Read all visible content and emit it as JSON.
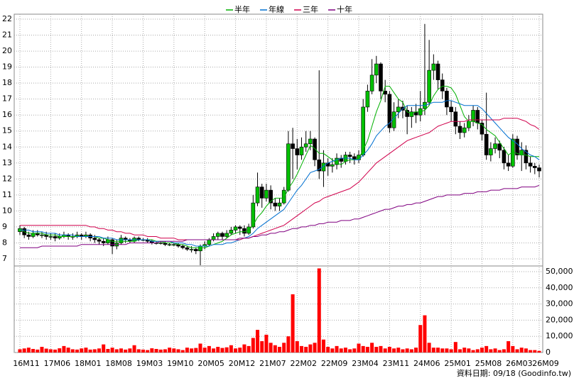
{
  "chart_data": {
    "type": "candlestick",
    "footnote": "資料日期: 09/18 (Goodinfo.tw)",
    "categories": [
      "16M11",
      null,
      null,
      null,
      null,
      null,
      null,
      "17M06",
      null,
      null,
      null,
      null,
      null,
      null,
      "18M01",
      null,
      null,
      null,
      null,
      null,
      null,
      "18M08",
      null,
      null,
      null,
      null,
      null,
      null,
      "19M03",
      null,
      null,
      null,
      null,
      null,
      null,
      "19M10",
      null,
      null,
      null,
      null,
      null,
      null,
      "20M05",
      null,
      null,
      null,
      null,
      null,
      null,
      "20M12",
      null,
      null,
      null,
      null,
      null,
      null,
      "21M07",
      null,
      null,
      null,
      null,
      null,
      null,
      "22M02",
      null,
      null,
      null,
      null,
      null,
      null,
      "22M09",
      null,
      null,
      null,
      null,
      null,
      null,
      "23M04",
      null,
      null,
      null,
      null,
      null,
      null,
      "23M11",
      null,
      null,
      null,
      null,
      null,
      null,
      "24M06",
      null,
      null,
      null,
      null,
      null,
      null,
      "25M01",
      null,
      null,
      null,
      null,
      null,
      null,
      "25M08",
      null,
      null,
      null,
      null,
      null,
      null,
      "26M03",
      null,
      null,
      null,
      null,
      null,
      "26M09"
    ],
    "open": [
      8.7,
      8.9,
      8.5,
      8.4,
      8.6,
      8.5,
      8.5,
      8.4,
      8.4,
      8.3,
      8.4,
      8.5,
      8.4,
      8.4,
      8.5,
      8.4,
      8.5,
      8.3,
      8.2,
      8.1,
      8.0,
      8.2,
      7.8,
      8.0,
      8.3,
      8.2,
      8.1,
      8.3,
      8.2,
      8.2,
      8.1,
      8.0,
      8.0,
      8.0,
      7.9,
      7.9,
      7.9,
      7.8,
      7.7,
      7.6,
      7.6,
      7.5,
      7.8,
      7.9,
      8.2,
      8.4,
      8.6,
      8.4,
      8.6,
      8.8,
      9.0,
      8.9,
      8.6,
      9.0,
      10.5,
      11.5,
      10.8,
      11.3,
      10.5,
      10.3,
      10.5,
      11.3,
      14.2,
      13.9,
      13.5,
      14.0,
      14.2,
      14.5,
      13.2,
      12.5,
      13.0,
      12.8,
      12.9,
      13.3,
      13.1,
      13.5,
      13.4,
      13.2,
      13.5,
      16.5,
      17.5,
      18.5,
      19.2,
      17.5,
      17.3,
      15.2,
      16.2,
      16.5,
      16.3,
      15.9,
      16.2,
      16.0,
      16.4,
      16.8,
      18.8,
      19.2,
      18.2,
      17.5,
      16.5,
      16.2,
      15.3,
      14.9,
      15.2,
      15.6,
      16.3,
      15.5,
      14.8,
      13.5,
      13.9,
      14.2,
      13.8,
      13.0,
      12.8,
      14.5,
      13.5,
      13.8,
      13.0,
      12.8,
      12.7
    ],
    "high": [
      9.1,
      9.0,
      8.7,
      8.8,
      8.8,
      8.7,
      8.7,
      8.6,
      8.6,
      8.6,
      8.7,
      8.6,
      8.6,
      8.7,
      8.6,
      8.7,
      8.6,
      8.5,
      8.3,
      8.3,
      8.4,
      8.3,
      8.2,
      8.5,
      8.4,
      8.3,
      8.4,
      8.4,
      8.3,
      8.3,
      8.2,
      8.1,
      8.1,
      8.1,
      8.0,
      8.0,
      8.0,
      7.9,
      7.8,
      7.8,
      7.7,
      7.9,
      8.1,
      8.3,
      8.6,
      8.7,
      8.7,
      8.8,
      9.0,
      9.1,
      9.1,
      9.1,
      9.2,
      11.0,
      12.4,
      11.7,
      11.7,
      11.6,
      10.8,
      10.8,
      11.5,
      15.0,
      15.2,
      14.5,
      14.6,
      15.0,
      15.0,
      14.6,
      18.8,
      13.8,
      13.3,
      13.3,
      13.6,
      13.5,
      13.7,
      13.7,
      13.6,
      13.8,
      17.0,
      17.9,
      19.5,
      19.7,
      19.3,
      18.2,
      17.5,
      16.8,
      17.0,
      16.9,
      16.6,
      16.5,
      16.7,
      17.5,
      21.7,
      20.7,
      19.8,
      19.4,
      18.6,
      17.7,
      16.9,
      16.5,
      15.6,
      15.5,
      16.0,
      16.6,
      16.5,
      15.7,
      17.4,
      14.3,
      14.6,
      14.4,
      14.0,
      13.5,
      14.8,
      14.7,
      14.3,
      14.1,
      13.4,
      13.0,
      12.9
    ],
    "low": [
      8.5,
      8.3,
      8.2,
      8.3,
      8.4,
      8.3,
      8.2,
      8.2,
      8.1,
      8.2,
      8.3,
      8.2,
      8.2,
      8.3,
      8.2,
      8.3,
      8.1,
      8.0,
      7.9,
      7.8,
      7.9,
      7.3,
      7.6,
      7.9,
      8.0,
      8.0,
      8.0,
      8.1,
      8.1,
      8.0,
      7.9,
      7.9,
      7.9,
      7.8,
      7.8,
      7.8,
      7.7,
      7.6,
      7.5,
      7.4,
      7.3,
      6.6,
      7.6,
      7.8,
      8.1,
      8.2,
      8.2,
      8.3,
      8.5,
      8.6,
      8.5,
      8.4,
      8.5,
      8.9,
      10.3,
      10.2,
      10.6,
      10.1,
      10.0,
      10.0,
      10.4,
      11.2,
      12.0,
      12.6,
      13.2,
      13.7,
      13.8,
      12.8,
      12.0,
      11.5,
      12.2,
      12.4,
      12.6,
      12.7,
      12.9,
      13.0,
      12.9,
      13.0,
      13.4,
      16.2,
      17.3,
      18.0,
      17.0,
      16.8,
      14.9,
      15.0,
      15.8,
      15.8,
      14.8,
      15.2,
      15.5,
      15.6,
      16.0,
      16.6,
      18.2,
      17.6,
      17.0,
      16.0,
      15.6,
      14.8,
      14.5,
      14.6,
      15.0,
      15.3,
      15.1,
      14.4,
      13.2,
      13.1,
      13.6,
      13.3,
      12.6,
      12.5,
      12.7,
      13.2,
      12.5,
      12.6,
      12.4,
      12.3,
      12.1
    ],
    "close": [
      8.9,
      8.5,
      8.4,
      8.6,
      8.5,
      8.5,
      8.4,
      8.4,
      8.3,
      8.4,
      8.5,
      8.4,
      8.4,
      8.5,
      8.4,
      8.5,
      8.3,
      8.2,
      8.1,
      8.0,
      8.2,
      7.8,
      8.0,
      8.3,
      8.2,
      8.1,
      8.3,
      8.2,
      8.2,
      8.1,
      8.0,
      8.0,
      8.0,
      7.9,
      7.9,
      7.9,
      7.8,
      7.7,
      7.6,
      7.6,
      7.5,
      7.8,
      7.9,
      8.2,
      8.4,
      8.6,
      8.4,
      8.6,
      8.8,
      9.0,
      8.9,
      8.6,
      9.0,
      10.5,
      11.5,
      10.8,
      11.3,
      10.5,
      10.3,
      10.5,
      11.3,
      14.2,
      13.9,
      13.5,
      14.0,
      14.2,
      14.5,
      13.2,
      12.5,
      13.0,
      12.8,
      12.9,
      13.3,
      13.1,
      13.5,
      13.4,
      13.2,
      13.5,
      16.5,
      17.5,
      18.5,
      19.2,
      17.5,
      17.3,
      15.2,
      16.2,
      16.5,
      16.3,
      15.9,
      16.2,
      16.0,
      16.4,
      16.8,
      18.8,
      19.2,
      18.2,
      17.5,
      16.5,
      16.2,
      15.3,
      14.9,
      15.2,
      15.6,
      16.3,
      15.5,
      14.8,
      13.5,
      13.9,
      14.2,
      13.8,
      13.0,
      12.8,
      14.5,
      13.5,
      13.8,
      13.0,
      12.8,
      12.7,
      12.5
    ],
    "up_color": "#00c000",
    "down_color": "#000000",
    "series": [
      {
        "name": "半年",
        "color": "#00b000",
        "values": [
          8.9,
          8.7,
          8.6,
          8.6,
          8.6,
          8.6,
          8.5,
          8.5,
          8.5,
          8.4,
          8.4,
          8.4,
          8.4,
          8.4,
          8.4,
          8.4,
          8.4,
          8.4,
          8.3,
          8.3,
          8.2,
          8.1,
          8.1,
          8.1,
          8.1,
          8.1,
          8.1,
          8.2,
          8.2,
          8.2,
          8.2,
          8.1,
          8.1,
          8.0,
          8.0,
          8.0,
          7.9,
          7.9,
          7.8,
          7.7,
          7.7,
          7.7,
          7.7,
          7.8,
          7.9,
          8.0,
          8.1,
          8.3,
          8.5,
          8.6,
          8.7,
          8.7,
          8.8,
          9.1,
          9.6,
          9.9,
          10.3,
          10.6,
          10.8,
          10.8,
          10.8,
          11.4,
          11.8,
          12.3,
          12.9,
          13.5,
          14.1,
          13.9,
          13.6,
          13.6,
          13.4,
          13.2,
          13.0,
          12.9,
          13.1,
          13.2,
          13.2,
          13.3,
          13.8,
          14.4,
          15.3,
          16.2,
          16.9,
          17.8,
          17.8,
          17.4,
          17.0,
          16.8,
          16.2,
          16.1,
          16.2,
          16.2,
          16.3,
          16.6,
          17.2,
          17.6,
          17.8,
          17.8,
          17.7,
          17.3,
          16.6,
          15.9,
          15.6,
          15.6,
          15.5,
          15.4,
          15.1,
          14.9,
          14.7,
          14.3,
          13.9,
          13.5,
          13.7,
          13.6,
          13.5,
          13.5,
          13.4,
          13.4,
          13.4
        ]
      },
      {
        "name": "年線",
        "color": "#0070d0",
        "values": [
          8.8,
          8.8,
          8.8,
          8.7,
          8.7,
          8.7,
          8.6,
          8.6,
          8.6,
          8.5,
          8.5,
          8.5,
          8.5,
          8.4,
          8.4,
          8.4,
          8.4,
          8.4,
          8.4,
          8.3,
          8.3,
          8.3,
          8.2,
          8.2,
          8.2,
          8.2,
          8.2,
          8.2,
          8.2,
          8.2,
          8.1,
          8.1,
          8.1,
          8.1,
          8.1,
          8.0,
          8.0,
          8.0,
          7.9,
          7.9,
          7.8,
          7.8,
          7.8,
          7.8,
          7.9,
          7.9,
          7.9,
          8.0,
          8.0,
          8.1,
          8.2,
          8.3,
          8.4,
          8.6,
          8.9,
          9.1,
          9.3,
          9.5,
          9.7,
          9.9,
          10.1,
          10.5,
          10.9,
          11.3,
          11.6,
          12.0,
          12.4,
          12.5,
          12.6,
          12.8,
          13.0,
          13.1,
          13.2,
          13.3,
          13.3,
          13.3,
          13.2,
          13.2,
          13.5,
          13.8,
          14.2,
          14.7,
          15.0,
          15.3,
          15.5,
          15.8,
          16.1,
          16.4,
          16.6,
          16.6,
          16.6,
          16.6,
          16.6,
          16.7,
          16.8,
          16.8,
          16.8,
          16.9,
          16.9,
          16.8,
          16.7,
          16.6,
          16.6,
          16.6,
          16.6,
          16.4,
          16.1,
          15.8,
          15.5,
          15.2,
          14.9,
          14.6,
          14.4,
          14.2,
          13.9,
          13.7,
          13.5,
          13.4,
          13.2
        ]
      },
      {
        "name": "三年",
        "color": "#d0004c",
        "values": [
          9.1,
          9.1,
          9.1,
          9.1,
          9.1,
          9.1,
          9.1,
          9.1,
          9.1,
          9.1,
          9.1,
          9.1,
          9.1,
          9.1,
          9.1,
          9.1,
          9.0,
          9.0,
          8.9,
          8.9,
          8.8,
          8.8,
          8.7,
          8.7,
          8.6,
          8.6,
          8.5,
          8.5,
          8.5,
          8.4,
          8.4,
          8.4,
          8.3,
          8.3,
          8.3,
          8.3,
          8.2,
          8.2,
          8.2,
          8.2,
          8.2,
          8.2,
          8.2,
          8.2,
          8.2,
          8.2,
          8.2,
          8.2,
          8.2,
          8.2,
          8.2,
          8.3,
          8.3,
          8.4,
          8.5,
          8.6,
          8.7,
          8.8,
          8.9,
          9.0,
          9.1,
          9.3,
          9.5,
          9.7,
          9.9,
          10.1,
          10.3,
          10.5,
          10.6,
          10.8,
          10.9,
          11.0,
          11.1,
          11.2,
          11.3,
          11.4,
          11.6,
          11.8,
          12.1,
          12.4,
          12.7,
          13.0,
          13.2,
          13.4,
          13.6,
          13.8,
          14.0,
          14.2,
          14.4,
          14.5,
          14.6,
          14.7,
          14.8,
          14.9,
          15.1,
          15.3,
          15.4,
          15.5,
          15.6,
          15.6,
          15.6,
          15.6,
          15.7,
          15.7,
          15.7,
          15.7,
          15.7,
          15.7,
          15.7,
          15.7,
          15.8,
          15.8,
          15.8,
          15.8,
          15.7,
          15.6,
          15.4,
          15.3,
          15.1
        ]
      },
      {
        "name": "十年",
        "color": "#800080",
        "values": [
          7.7,
          7.7,
          7.7,
          7.7,
          7.7,
          7.8,
          7.8,
          7.8,
          7.8,
          7.8,
          7.8,
          7.8,
          7.8,
          7.8,
          7.9,
          7.9,
          7.9,
          7.9,
          7.9,
          7.9,
          7.9,
          7.9,
          7.9,
          7.9,
          7.9,
          8.0,
          8.0,
          8.0,
          8.0,
          8.0,
          8.0,
          8.0,
          8.1,
          8.1,
          8.1,
          8.1,
          8.1,
          8.1,
          8.2,
          8.2,
          8.2,
          8.2,
          8.2,
          8.2,
          8.2,
          8.2,
          8.2,
          8.2,
          8.2,
          8.2,
          8.3,
          8.3,
          8.3,
          8.4,
          8.4,
          8.5,
          8.5,
          8.6,
          8.6,
          8.7,
          8.7,
          8.8,
          8.9,
          8.9,
          9.0,
          9.0,
          9.1,
          9.1,
          9.2,
          9.2,
          9.3,
          9.3,
          9.3,
          9.4,
          9.4,
          9.4,
          9.5,
          9.5,
          9.6,
          9.7,
          9.8,
          9.9,
          10.0,
          10.1,
          10.1,
          10.2,
          10.3,
          10.3,
          10.4,
          10.4,
          10.5,
          10.5,
          10.6,
          10.7,
          10.8,
          10.9,
          10.9,
          11.0,
          11.0,
          11.0,
          11.0,
          11.1,
          11.1,
          11.1,
          11.2,
          11.2,
          11.2,
          11.3,
          11.3,
          11.3,
          11.4,
          11.4,
          11.4,
          11.4,
          11.5,
          11.5,
          11.5,
          11.5,
          11.6
        ]
      }
    ],
    "volume": {
      "color": "#ff0000",
      "values": [
        2000,
        2500,
        3000,
        2200,
        1800,
        3500,
        2400,
        2000,
        1800,
        2600,
        4000,
        3000,
        2000,
        1800,
        2500,
        3000,
        1800,
        2000,
        2500,
        5000,
        2200,
        3000,
        2000,
        2500,
        1800,
        2500,
        4500,
        2000,
        1800,
        1500,
        2600,
        2200,
        1800,
        2000,
        3000,
        2500,
        2000,
        1500,
        3000,
        2500,
        2800,
        5500,
        3000,
        4000,
        2500,
        3500,
        2800,
        3200,
        4500,
        2500,
        3000,
        5000,
        4000,
        9000,
        14000,
        7000,
        11000,
        6000,
        4500,
        3500,
        6000,
        10000,
        36000,
        7000,
        4000,
        3500,
        5000,
        6000,
        52000,
        8000,
        3500,
        2500,
        4000,
        2500,
        3000,
        2000,
        2500,
        5500,
        4000,
        3500,
        6000,
        3500,
        4000,
        2500,
        3500,
        2500,
        3000,
        2000,
        2500,
        2000,
        3000,
        17000,
        23000,
        6000,
        3000,
        3000,
        2500,
        2500,
        2000,
        6500,
        2000,
        3000,
        2500,
        1500,
        2000,
        3000,
        4000,
        2000,
        2500,
        1500,
        2000,
        7000,
        4000,
        2000,
        3000,
        2500,
        1500,
        1500,
        1000
      ]
    },
    "ylim": [
      7,
      22
    ],
    "yticks": [
      7,
      8,
      9,
      10,
      11,
      12,
      13,
      14,
      15,
      16,
      17,
      18,
      19,
      20,
      21,
      22
    ],
    "y2lim": [
      0,
      50000
    ],
    "y2ticks": [
      0,
      {
        "value": 10000,
        "label": "10,000"
      },
      {
        "value": 20000,
        "label": "20,000"
      },
      {
        "value": 30000,
        "label": "30,000"
      },
      {
        "value": 40000,
        "label": "40,000"
      },
      {
        "value": 50000,
        "label": "50,000"
      }
    ],
    "grid": true
  }
}
